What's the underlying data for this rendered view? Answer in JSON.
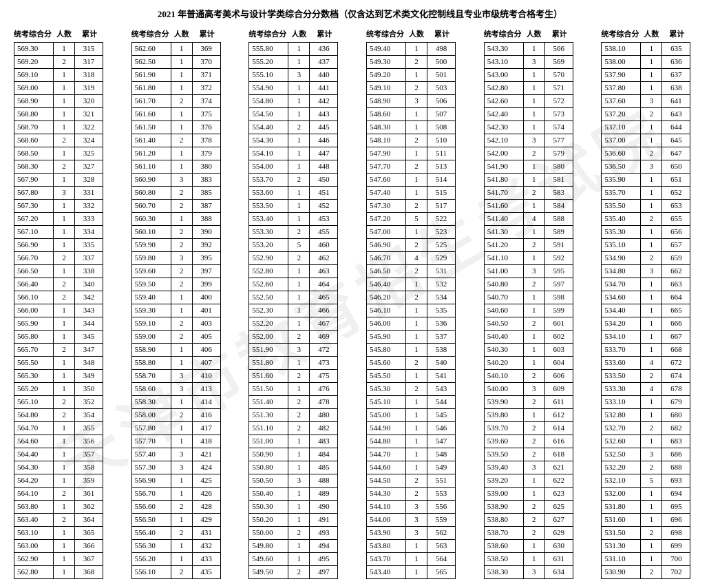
{
  "title": "2021 年普通高考美术与设计学类综合分分数档（仅含达到艺术类文化控制线且专业市级统考合格考生）",
  "watermark": "天津市教育招生考试院",
  "headers": {
    "score": "统考综合分",
    "count": "人数",
    "cum": "累计"
  },
  "columns": [
    [
      [
        "569.30",
        "1",
        "315"
      ],
      [
        "569.20",
        "2",
        "317"
      ],
      [
        "569.10",
        "1",
        "318"
      ],
      [
        "569.00",
        "1",
        "319"
      ],
      [
        "568.90",
        "1",
        "320"
      ],
      [
        "568.80",
        "1",
        "321"
      ],
      [
        "568.70",
        "1",
        "322"
      ],
      [
        "568.60",
        "2",
        "324"
      ],
      [
        "568.50",
        "1",
        "325"
      ],
      [
        "568.30",
        "2",
        "327"
      ],
      [
        "567.90",
        "1",
        "328"
      ],
      [
        "567.80",
        "3",
        "331"
      ],
      [
        "567.30",
        "1",
        "332"
      ],
      [
        "567.20",
        "1",
        "333"
      ],
      [
        "567.10",
        "1",
        "334"
      ],
      [
        "566.90",
        "1",
        "335"
      ],
      [
        "566.70",
        "2",
        "337"
      ],
      [
        "566.50",
        "1",
        "338"
      ],
      [
        "566.40",
        "2",
        "340"
      ],
      [
        "566.10",
        "2",
        "342"
      ],
      [
        "566.00",
        "1",
        "343"
      ],
      [
        "565.90",
        "1",
        "344"
      ],
      [
        "565.80",
        "1",
        "345"
      ],
      [
        "565.70",
        "2",
        "347"
      ],
      [
        "565.50",
        "1",
        "348"
      ],
      [
        "565.30",
        "1",
        "349"
      ],
      [
        "565.20",
        "1",
        "350"
      ],
      [
        "565.10",
        "2",
        "352"
      ],
      [
        "564.80",
        "2",
        "354"
      ],
      [
        "564.70",
        "1",
        "355"
      ],
      [
        "564.60",
        "1",
        "356"
      ],
      [
        "564.40",
        "1",
        "357"
      ],
      [
        "564.30",
        "1",
        "358"
      ],
      [
        "564.20",
        "1",
        "359"
      ],
      [
        "564.10",
        "2",
        "361"
      ],
      [
        "563.80",
        "1",
        "362"
      ],
      [
        "563.40",
        "2",
        "364"
      ],
      [
        "563.10",
        "1",
        "365"
      ],
      [
        "563.00",
        "1",
        "366"
      ],
      [
        "562.90",
        "1",
        "367"
      ],
      [
        "562.80",
        "1",
        "368"
      ]
    ],
    [
      [
        "562.60",
        "1",
        "369"
      ],
      [
        "562.50",
        "1",
        "370"
      ],
      [
        "561.90",
        "1",
        "371"
      ],
      [
        "561.80",
        "1",
        "372"
      ],
      [
        "561.70",
        "2",
        "374"
      ],
      [
        "561.60",
        "1",
        "375"
      ],
      [
        "561.50",
        "1",
        "376"
      ],
      [
        "561.40",
        "2",
        "378"
      ],
      [
        "561.20",
        "1",
        "379"
      ],
      [
        "561.10",
        "1",
        "380"
      ],
      [
        "560.90",
        "3",
        "383"
      ],
      [
        "560.80",
        "2",
        "385"
      ],
      [
        "560.70",
        "2",
        "387"
      ],
      [
        "560.30",
        "1",
        "388"
      ],
      [
        "560.10",
        "2",
        "390"
      ],
      [
        "559.90",
        "2",
        "392"
      ],
      [
        "559.80",
        "3",
        "395"
      ],
      [
        "559.60",
        "2",
        "397"
      ],
      [
        "559.50",
        "2",
        "399"
      ],
      [
        "559.40",
        "1",
        "400"
      ],
      [
        "559.30",
        "1",
        "401"
      ],
      [
        "559.10",
        "2",
        "403"
      ],
      [
        "559.00",
        "2",
        "405"
      ],
      [
        "558.90",
        "1",
        "406"
      ],
      [
        "558.80",
        "1",
        "407"
      ],
      [
        "558.70",
        "3",
        "410"
      ],
      [
        "558.60",
        "3",
        "413"
      ],
      [
        "558.30",
        "1",
        "414"
      ],
      [
        "558.00",
        "2",
        "416"
      ],
      [
        "557.80",
        "1",
        "417"
      ],
      [
        "557.70",
        "1",
        "418"
      ],
      [
        "557.40",
        "3",
        "421"
      ],
      [
        "557.30",
        "3",
        "424"
      ],
      [
        "556.90",
        "1",
        "425"
      ],
      [
        "556.70",
        "1",
        "426"
      ],
      [
        "556.60",
        "2",
        "428"
      ],
      [
        "556.50",
        "1",
        "429"
      ],
      [
        "556.40",
        "2",
        "431"
      ],
      [
        "556.30",
        "1",
        "432"
      ],
      [
        "556.20",
        "1",
        "433"
      ],
      [
        "556.10",
        "2",
        "435"
      ]
    ],
    [
      [
        "555.80",
        "1",
        "436"
      ],
      [
        "555.20",
        "1",
        "437"
      ],
      [
        "555.10",
        "3",
        "440"
      ],
      [
        "554.90",
        "1",
        "441"
      ],
      [
        "554.80",
        "1",
        "442"
      ],
      [
        "554.50",
        "1",
        "443"
      ],
      [
        "554.40",
        "2",
        "445"
      ],
      [
        "554.30",
        "1",
        "446"
      ],
      [
        "554.10",
        "1",
        "447"
      ],
      [
        "554.00",
        "1",
        "448"
      ],
      [
        "553.70",
        "2",
        "450"
      ],
      [
        "553.60",
        "1",
        "451"
      ],
      [
        "553.50",
        "1",
        "452"
      ],
      [
        "553.40",
        "1",
        "453"
      ],
      [
        "553.30",
        "2",
        "455"
      ],
      [
        "553.20",
        "5",
        "460"
      ],
      [
        "552.90",
        "2",
        "462"
      ],
      [
        "552.80",
        "1",
        "463"
      ],
      [
        "552.60",
        "1",
        "464"
      ],
      [
        "552.50",
        "1",
        "465"
      ],
      [
        "552.30",
        "1",
        "466"
      ],
      [
        "552.20",
        "1",
        "467"
      ],
      [
        "552.00",
        "2",
        "469"
      ],
      [
        "551.90",
        "3",
        "472"
      ],
      [
        "551.80",
        "1",
        "473"
      ],
      [
        "551.60",
        "2",
        "475"
      ],
      [
        "551.50",
        "1",
        "476"
      ],
      [
        "551.40",
        "2",
        "478"
      ],
      [
        "551.30",
        "2",
        "480"
      ],
      [
        "551.10",
        "2",
        "482"
      ],
      [
        "551.00",
        "1",
        "483"
      ],
      [
        "550.90",
        "1",
        "484"
      ],
      [
        "550.80",
        "1",
        "485"
      ],
      [
        "550.50",
        "3",
        "488"
      ],
      [
        "550.40",
        "1",
        "489"
      ],
      [
        "550.30",
        "1",
        "490"
      ],
      [
        "550.20",
        "1",
        "491"
      ],
      [
        "550.00",
        "2",
        "493"
      ],
      [
        "549.80",
        "1",
        "494"
      ],
      [
        "549.60",
        "1",
        "495"
      ],
      [
        "549.50",
        "2",
        "497"
      ]
    ],
    [
      [
        "549.40",
        "1",
        "498"
      ],
      [
        "549.30",
        "2",
        "500"
      ],
      [
        "549.20",
        "1",
        "501"
      ],
      [
        "549.10",
        "2",
        "503"
      ],
      [
        "548.90",
        "3",
        "506"
      ],
      [
        "548.60",
        "1",
        "507"
      ],
      [
        "548.30",
        "1",
        "508"
      ],
      [
        "548.10",
        "2",
        "510"
      ],
      [
        "547.90",
        "1",
        "511"
      ],
      [
        "547.70",
        "2",
        "513"
      ],
      [
        "547.60",
        "1",
        "514"
      ],
      [
        "547.40",
        "1",
        "515"
      ],
      [
        "547.30",
        "2",
        "517"
      ],
      [
        "547.20",
        "5",
        "522"
      ],
      [
        "547.00",
        "1",
        "523"
      ],
      [
        "546.90",
        "2",
        "525"
      ],
      [
        "546.70",
        "4",
        "529"
      ],
      [
        "546.50",
        "2",
        "531"
      ],
      [
        "546.40",
        "1",
        "532"
      ],
      [
        "546.20",
        "2",
        "534"
      ],
      [
        "546.10",
        "1",
        "535"
      ],
      [
        "546.00",
        "1",
        "536"
      ],
      [
        "545.90",
        "1",
        "537"
      ],
      [
        "545.80",
        "1",
        "538"
      ],
      [
        "545.60",
        "2",
        "540"
      ],
      [
        "545.50",
        "1",
        "541"
      ],
      [
        "545.30",
        "2",
        "543"
      ],
      [
        "545.10",
        "1",
        "544"
      ],
      [
        "545.00",
        "1",
        "545"
      ],
      [
        "544.90",
        "1",
        "546"
      ],
      [
        "544.80",
        "1",
        "547"
      ],
      [
        "544.70",
        "1",
        "548"
      ],
      [
        "544.60",
        "1",
        "549"
      ],
      [
        "544.50",
        "2",
        "551"
      ],
      [
        "544.30",
        "2",
        "553"
      ],
      [
        "544.10",
        "3",
        "556"
      ],
      [
        "544.00",
        "3",
        "559"
      ],
      [
        "543.90",
        "3",
        "562"
      ],
      [
        "543.80",
        "1",
        "563"
      ],
      [
        "543.70",
        "1",
        "564"
      ],
      [
        "543.40",
        "1",
        "565"
      ]
    ],
    [
      [
        "543.30",
        "1",
        "566"
      ],
      [
        "543.10",
        "3",
        "569"
      ],
      [
        "543.00",
        "1",
        "570"
      ],
      [
        "542.80",
        "1",
        "571"
      ],
      [
        "542.60",
        "1",
        "572"
      ],
      [
        "542.40",
        "1",
        "573"
      ],
      [
        "542.30",
        "1",
        "574"
      ],
      [
        "542.10",
        "3",
        "577"
      ],
      [
        "542.00",
        "2",
        "579"
      ],
      [
        "541.90",
        "1",
        "580"
      ],
      [
        "541.80",
        "1",
        "581"
      ],
      [
        "541.70",
        "2",
        "583"
      ],
      [
        "541.60",
        "1",
        "584"
      ],
      [
        "541.40",
        "4",
        "588"
      ],
      [
        "541.30",
        "1",
        "589"
      ],
      [
        "541.20",
        "2",
        "591"
      ],
      [
        "541.10",
        "1",
        "592"
      ],
      [
        "541.00",
        "3",
        "595"
      ],
      [
        "540.80",
        "2",
        "597"
      ],
      [
        "540.70",
        "1",
        "598"
      ],
      [
        "540.60",
        "1",
        "599"
      ],
      [
        "540.50",
        "2",
        "601"
      ],
      [
        "540.40",
        "1",
        "602"
      ],
      [
        "540.30",
        "1",
        "603"
      ],
      [
        "540.20",
        "1",
        "604"
      ],
      [
        "540.10",
        "2",
        "606"
      ],
      [
        "540.00",
        "3",
        "609"
      ],
      [
        "539.90",
        "2",
        "611"
      ],
      [
        "539.80",
        "1",
        "612"
      ],
      [
        "539.70",
        "2",
        "614"
      ],
      [
        "539.60",
        "2",
        "616"
      ],
      [
        "539.50",
        "2",
        "618"
      ],
      [
        "539.40",
        "3",
        "621"
      ],
      [
        "539.20",
        "1",
        "622"
      ],
      [
        "539.00",
        "1",
        "623"
      ],
      [
        "538.90",
        "2",
        "625"
      ],
      [
        "538.80",
        "2",
        "627"
      ],
      [
        "538.70",
        "2",
        "629"
      ],
      [
        "538.60",
        "1",
        "630"
      ],
      [
        "538.50",
        "1",
        "631"
      ],
      [
        "538.30",
        "3",
        "634"
      ]
    ],
    [
      [
        "538.10",
        "1",
        "635"
      ],
      [
        "538.00",
        "1",
        "636"
      ],
      [
        "537.90",
        "1",
        "637"
      ],
      [
        "537.80",
        "1",
        "638"
      ],
      [
        "537.60",
        "3",
        "641"
      ],
      [
        "537.20",
        "2",
        "643"
      ],
      [
        "537.10",
        "1",
        "644"
      ],
      [
        "537.00",
        "1",
        "645"
      ],
      [
        "536.60",
        "2",
        "647"
      ],
      [
        "536.50",
        "3",
        "650"
      ],
      [
        "535.90",
        "1",
        "651"
      ],
      [
        "535.70",
        "1",
        "652"
      ],
      [
        "535.50",
        "1",
        "653"
      ],
      [
        "535.40",
        "2",
        "655"
      ],
      [
        "535.30",
        "1",
        "656"
      ],
      [
        "535.10",
        "1",
        "657"
      ],
      [
        "534.90",
        "2",
        "659"
      ],
      [
        "534.80",
        "3",
        "662"
      ],
      [
        "534.70",
        "1",
        "663"
      ],
      [
        "534.60",
        "1",
        "664"
      ],
      [
        "534.40",
        "1",
        "665"
      ],
      [
        "534.20",
        "1",
        "666"
      ],
      [
        "534.10",
        "1",
        "667"
      ],
      [
        "533.70",
        "1",
        "668"
      ],
      [
        "533.60",
        "4",
        "672"
      ],
      [
        "533.50",
        "2",
        "674"
      ],
      [
        "533.30",
        "4",
        "678"
      ],
      [
        "533.10",
        "1",
        "679"
      ],
      [
        "532.80",
        "1",
        "680"
      ],
      [
        "532.70",
        "2",
        "682"
      ],
      [
        "532.60",
        "1",
        "683"
      ],
      [
        "532.50",
        "3",
        "686"
      ],
      [
        "532.20",
        "2",
        "688"
      ],
      [
        "532.10",
        "5",
        "693"
      ],
      [
        "532.00",
        "1",
        "694"
      ],
      [
        "531.80",
        "1",
        "695"
      ],
      [
        "531.60",
        "1",
        "696"
      ],
      [
        "531.50",
        "2",
        "698"
      ],
      [
        "531.30",
        "1",
        "699"
      ],
      [
        "531.10",
        "1",
        "700"
      ],
      [
        "530.90",
        "2",
        "702"
      ]
    ]
  ]
}
